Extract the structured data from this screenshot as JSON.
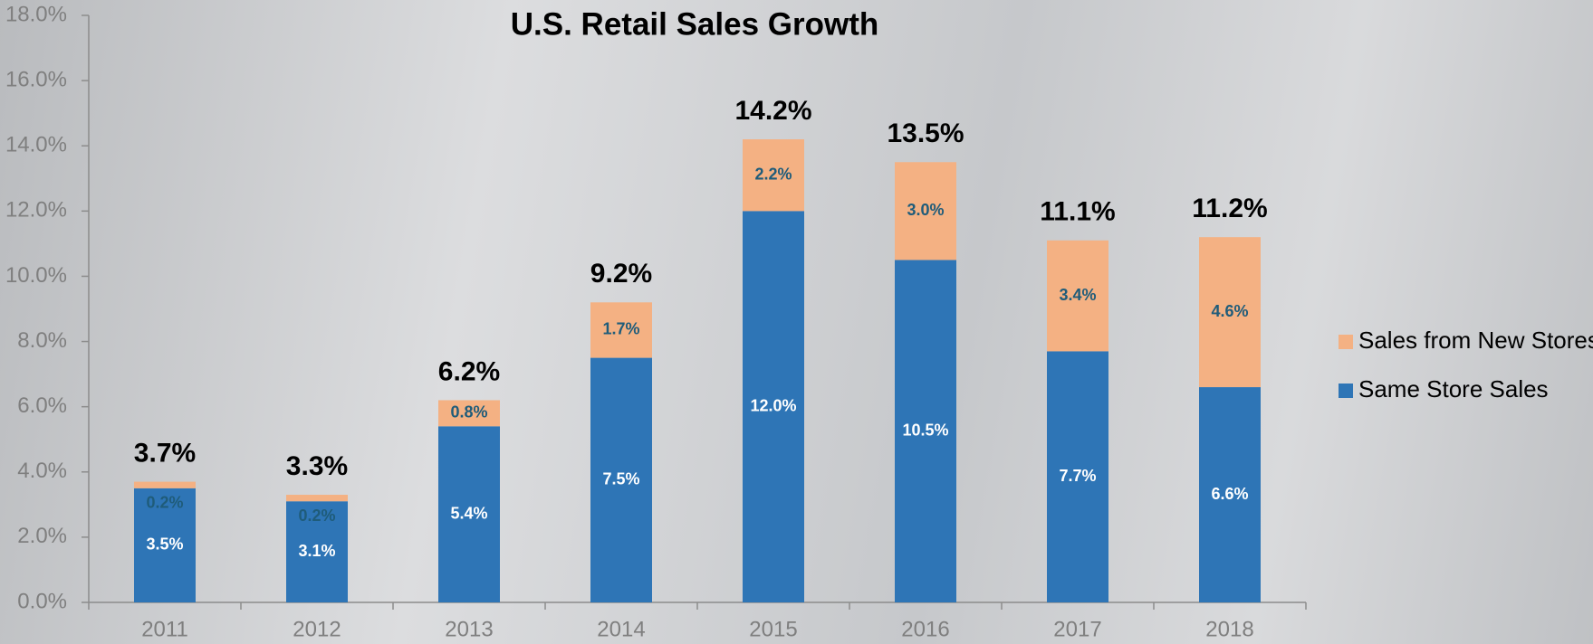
{
  "chart_data": {
    "type": "stacked_bar",
    "title": "U.S. Retail Sales Growth",
    "categories": [
      "2011",
      "2012",
      "2013",
      "2014",
      "2015",
      "2016",
      "2017",
      "2018"
    ],
    "series": [
      {
        "name": "Same Store Sales",
        "color": "#2e75b6",
        "values": [
          3.5,
          3.1,
          5.4,
          7.5,
          12.0,
          10.5,
          7.7,
          6.6
        ],
        "value_labels": [
          "3.5%",
          "3.1%",
          "5.4%",
          "7.5%",
          "12.0%",
          "10.5%",
          "7.7%",
          "6.6%"
        ]
      },
      {
        "name": "Sales from New Stores",
        "color": "#f4b183",
        "values": [
          0.2,
          0.2,
          0.8,
          1.7,
          2.2,
          3.0,
          3.4,
          4.6
        ],
        "value_labels": [
          "0.2%",
          "0.2%",
          "0.8%",
          "1.7%",
          "2.2%",
          "3.0%",
          "3.4%",
          "4.6%"
        ]
      }
    ],
    "totals": {
      "values": [
        3.7,
        3.3,
        6.2,
        9.2,
        14.2,
        13.5,
        11.1,
        11.2
      ],
      "value_labels": [
        "3.7%",
        "3.3%",
        "6.2%",
        "9.2%",
        "14.2%",
        "13.5%",
        "11.1%",
        "11.2%"
      ]
    },
    "ylim": [
      0,
      18
    ],
    "yticks": [
      {
        "value": 0,
        "label": "0.0%"
      },
      {
        "value": 2,
        "label": "2.0%"
      },
      {
        "value": 4,
        "label": "4.0%"
      },
      {
        "value": 6,
        "label": "6.0%"
      },
      {
        "value": 8,
        "label": "8.0%"
      },
      {
        "value": 10,
        "label": "10.0%"
      },
      {
        "value": 12,
        "label": "12.0%"
      },
      {
        "value": 14,
        "label": "14.0%"
      },
      {
        "value": 16,
        "label": "16.0%"
      },
      {
        "value": 18,
        "label": "18.0%"
      }
    ],
    "legend": "right"
  }
}
